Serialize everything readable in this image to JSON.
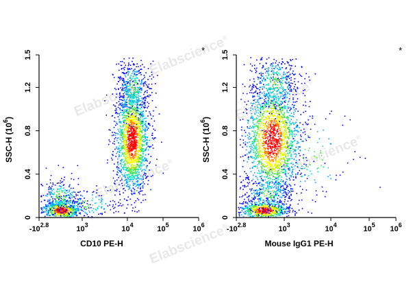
{
  "watermark": "Elabscience",
  "watermark_mark": "®",
  "chart_data": [
    {
      "type": "scatter",
      "xlabel": "CD10 PE-H",
      "ylabel": "SSC-H",
      "ylabel_exp": "6",
      "corner_mark": "*",
      "x_scale": "log",
      "xlim": [
        -631,
        1000000
      ],
      "ylim": [
        0,
        1.5
      ],
      "x_ticks": [
        {
          "value": -631,
          "label": "-10",
          "exp": "2.8"
        },
        {
          "value": 1000,
          "label": "10",
          "exp": "3"
        },
        {
          "value": 10000,
          "label": "10",
          "exp": "4"
        },
        {
          "value": 100000,
          "label": "10",
          "exp": "5"
        },
        {
          "value": 1000000,
          "label": "10",
          "exp": "6"
        }
      ],
      "y_ticks": [
        0,
        0.4,
        0.8,
        1.2,
        1.5
      ],
      "y_tick_labels": [
        "0",
        "0.4",
        "0.8",
        "1.2",
        "1.5"
      ],
      "populations": [
        {
          "name": "low-SSC cluster",
          "center_x": 500,
          "center_y": 0.07,
          "count_share": 0.28
        },
        {
          "name": "CD10-positive cluster",
          "center_x": 14000,
          "center_y": 0.75,
          "count_share": 0.62
        }
      ]
    },
    {
      "type": "scatter",
      "xlabel": "Mouse IgG1 PE-H",
      "ylabel": "SSC-H",
      "ylabel_exp": "6",
      "corner_mark": "*",
      "x_scale": "log",
      "xlim": [
        -631,
        1000000
      ],
      "ylim": [
        0,
        1.5
      ],
      "x_ticks": [
        {
          "value": -631,
          "label": "-10",
          "exp": "2.8"
        },
        {
          "value": 1000,
          "label": "10",
          "exp": "3"
        },
        {
          "value": 10000,
          "label": "10",
          "exp": "4"
        },
        {
          "value": 100000,
          "label": "10",
          "exp": "5"
        },
        {
          "value": 1000000,
          "label": "10",
          "exp": "6"
        }
      ],
      "y_ticks": [
        0,
        0.4,
        0.8,
        1.2,
        1.5
      ],
      "y_tick_labels": [
        "0",
        "0.4",
        "0.8",
        "1.2",
        "1.5"
      ],
      "populations": [
        {
          "name": "low-SSC cluster",
          "center_x": 450,
          "center_y": 0.07,
          "count_share": 0.28
        },
        {
          "name": "isotype main cluster",
          "center_x": 600,
          "center_y": 0.72,
          "count_share": 0.64
        }
      ]
    }
  ],
  "density_colors": [
    "#0000ff",
    "#00a0ff",
    "#00e0c0",
    "#40e040",
    "#c0f000",
    "#ffff00",
    "#ff8000",
    "#ff0000"
  ]
}
